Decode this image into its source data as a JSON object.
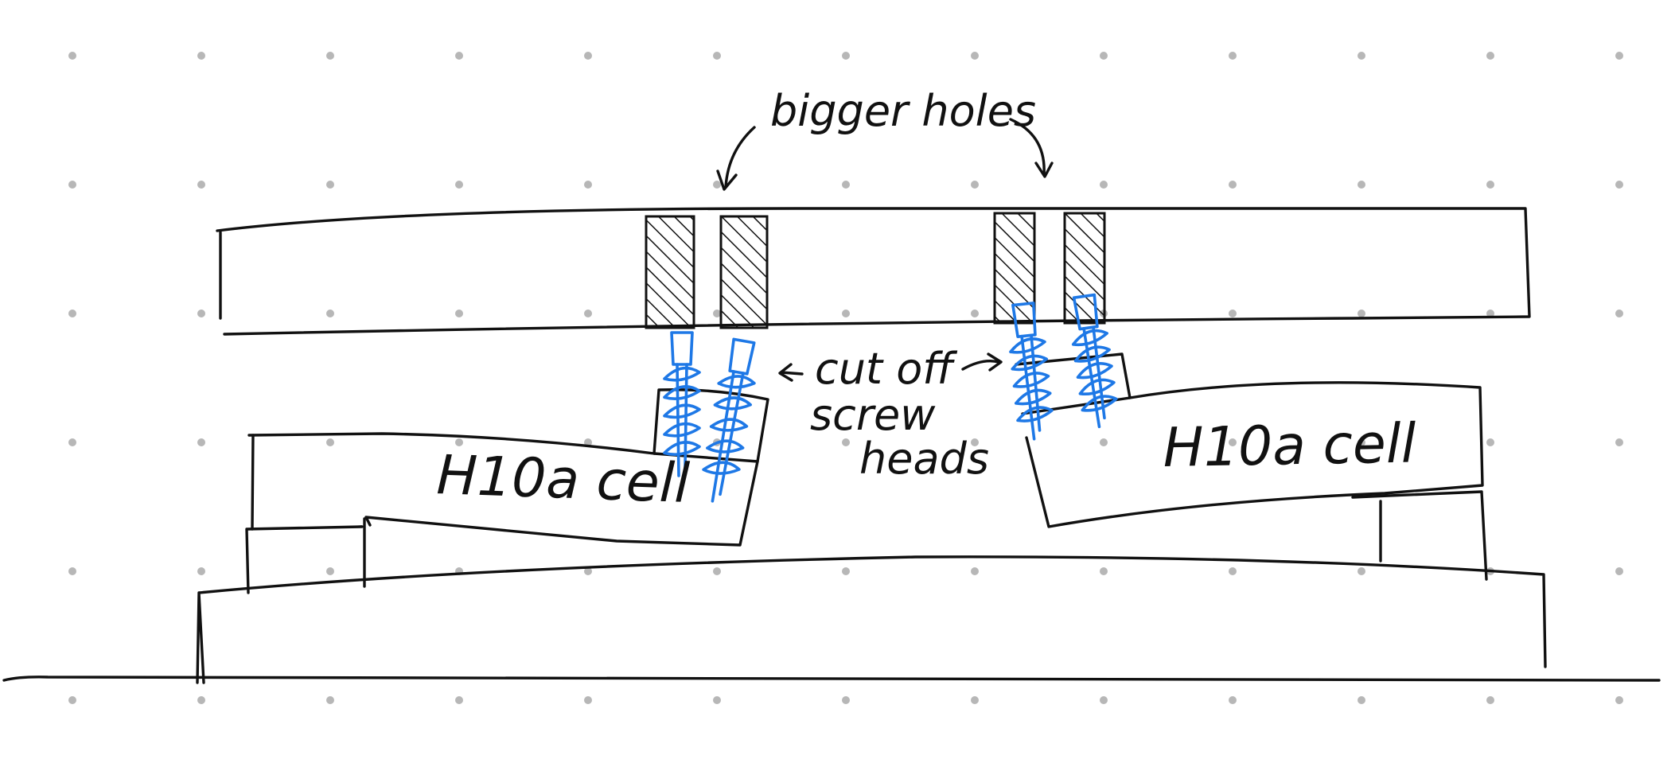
{
  "colors": {
    "ink": "#111111",
    "screw": "#1e78e6",
    "grid_dot": "#b7b7b7",
    "background": "#ffffff"
  },
  "labels": {
    "bigger_holes": "bigger holes",
    "cut_off": "cut off",
    "screw": "screw",
    "heads": "heads",
    "cell_left": "H10a cell",
    "cell_right": "H10a cell"
  }
}
